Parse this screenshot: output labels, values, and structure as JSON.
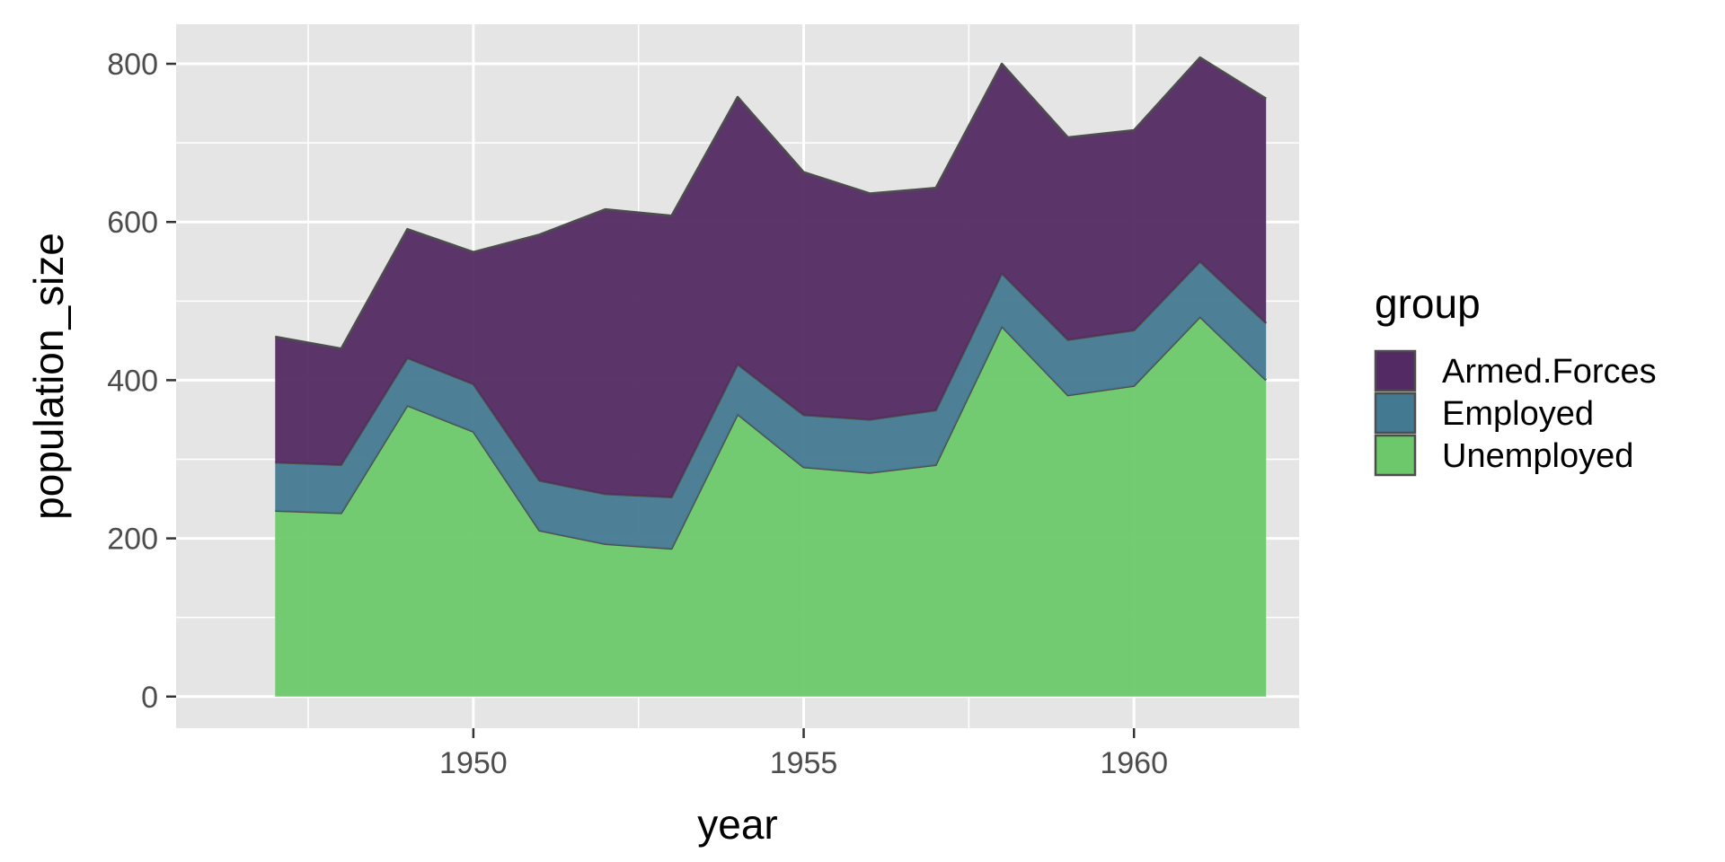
{
  "chart_data": {
    "type": "area",
    "stacked": true,
    "x": [
      1947,
      1948,
      1949,
      1950,
      1951,
      1952,
      1953,
      1954,
      1955,
      1956,
      1957,
      1958,
      1959,
      1960,
      1961,
      1962
    ],
    "series": [
      {
        "name": "Unemployed",
        "color": "#6cc86a",
        "values": [
          235,
          232,
          368,
          335,
          210,
          193,
          187,
          357,
          290,
          283,
          293,
          468,
          381,
          393,
          480,
          400
        ]
      },
      {
        "name": "Employed",
        "color": "#447a91",
        "values": [
          61,
          61,
          60,
          60,
          63,
          63,
          65,
          63,
          66,
          67,
          69,
          67,
          70,
          70,
          70,
          72
        ]
      },
      {
        "name": "Armed.Forces",
        "color": "#532a63",
        "values": [
          159,
          147,
          163,
          167,
          311,
          360,
          356,
          338,
          307,
          286,
          281,
          265,
          256,
          253,
          258,
          284
        ]
      }
    ],
    "xlabel": "year",
    "ylabel": "population_size",
    "xlim": [
      1945.5,
      1962.5
    ],
    "ylim": [
      -40,
      850
    ],
    "x_ticks": [
      "1950",
      "1955",
      "1960"
    ],
    "y_ticks": [
      "0",
      "200",
      "400",
      "600",
      "800"
    ],
    "legend": {
      "title": "group",
      "placement": "right",
      "entries": [
        "Armed.Forces",
        "Employed",
        "Unemployed"
      ]
    },
    "grid": true,
    "panel_background": "#e5e5e5",
    "outline_color": "#4d4d4d"
  }
}
